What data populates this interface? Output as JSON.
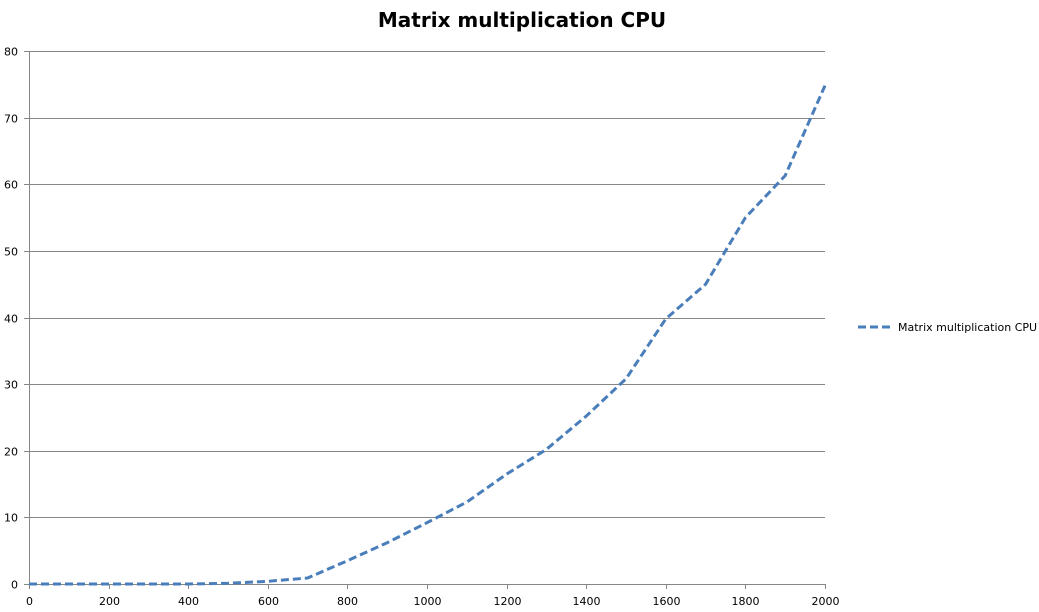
{
  "chart_data": {
    "type": "line",
    "title": "Matrix multiplication CPU",
    "xlabel": "",
    "ylabel": "",
    "xlim": [
      0,
      2000
    ],
    "ylim": [
      0,
      80
    ],
    "x_ticks": [
      "0",
      "200",
      "400",
      "600",
      "800",
      "1000",
      "1200",
      "1400",
      "1600",
      "1800",
      "2000"
    ],
    "y_ticks": [
      "0",
      "10",
      "20",
      "30",
      "40",
      "50",
      "60",
      "70",
      "80"
    ],
    "grid": "horizontal",
    "legend_position": "right",
    "series": [
      {
        "name": "Matrix multiplication CPU",
        "color": "#4a7ebb",
        "line_style": "dashed",
        "x": [
          0,
          100,
          200,
          300,
          400,
          500,
          600,
          700,
          800,
          900,
          1000,
          1100,
          1200,
          1300,
          1400,
          1500,
          1600,
          1700,
          1800,
          1900,
          2000
        ],
        "y": [
          0,
          0,
          0,
          0,
          0,
          0.1,
          0.4,
          0.9,
          3.5,
          6.2,
          9.2,
          12.3,
          16.5,
          20.2,
          25.2,
          30.8,
          39.8,
          45,
          55,
          61.3,
          74.8
        ]
      }
    ]
  }
}
